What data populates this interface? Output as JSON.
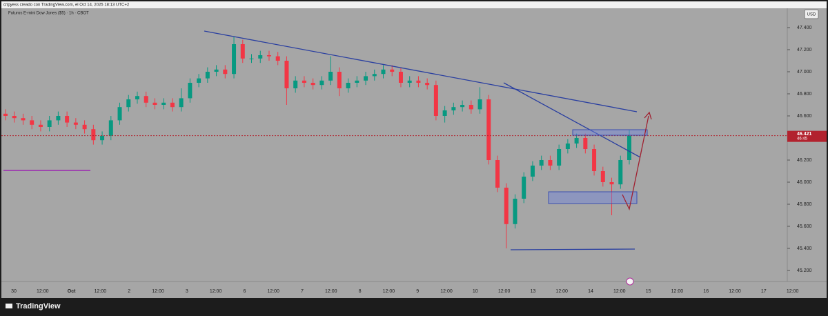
{
  "header": {
    "credit": "cripyess creado con TradingView.com, el Oct 14, 2025 18:13 UTC+2",
    "symbol": "Futuros E-mini Dow Jones ($5) · 1h · CBOT",
    "currency": "USD"
  },
  "footer": {
    "brand": "TradingView"
  },
  "chart_data": {
    "type": "candlestick",
    "categories": [
      "30",
      "12:00",
      "Oct",
      "12:00",
      "2",
      "12:00",
      "3",
      "12:00",
      "6",
      "12:00",
      "7",
      "12:00",
      "8",
      "12:00",
      "9",
      "12:00",
      "10",
      "12:00",
      "13",
      "12:00",
      "14",
      "12:00",
      "15",
      "12:00",
      "16",
      "12:00",
      "17",
      "12:00"
    ],
    "open": [
      46620,
      46600,
      46580,
      46560,
      46520,
      46500,
      46560,
      46600,
      46540,
      46520,
      46480,
      46380,
      46420,
      46560,
      46680,
      46750,
      46780,
      46720,
      46700,
      46720,
      46680,
      46760,
      46900,
      46940,
      47000,
      47020,
      46980,
      47250,
      47120,
      47120,
      47150,
      47140,
      47100,
      46850,
      46920,
      46900,
      46880,
      46920,
      47000,
      46850,
      46900,
      46920,
      46960,
      46980,
      47020,
      47000,
      46900,
      46920,
      46900,
      46880,
      46600,
      46650,
      46680,
      46700,
      46660,
      46750,
      46200,
      45950,
      45620,
      45850,
      46050,
      46150,
      46200,
      46150,
      46300,
      46350,
      46400,
      46300,
      46100,
      46000,
      45980,
      46200
    ],
    "high": [
      46660,
      46640,
      46620,
      46600,
      46560,
      46600,
      46640,
      46640,
      46580,
      46560,
      46520,
      46460,
      46600,
      46720,
      46790,
      46820,
      46820,
      46760,
      46760,
      46760,
      46850,
      46940,
      46980,
      47040,
      47060,
      47060,
      47320,
      47290,
      47160,
      47190,
      47190,
      47180,
      47140,
      46960,
      46960,
      46940,
      46960,
      47140,
      47040,
      46940,
      46960,
      47000,
      47020,
      47060,
      47060,
      47040,
      46960,
      46960,
      46940,
      46920,
      46690,
      46720,
      46740,
      46740,
      46860,
      46790,
      46240,
      45990,
      45890,
      46090,
      46190,
      46240,
      46240,
      46340,
      46390,
      46440,
      46440,
      46340,
      46140,
      46040,
      46240,
      46470
    ],
    "low": [
      46560,
      46540,
      46520,
      46480,
      46460,
      46460,
      46520,
      46500,
      46480,
      46440,
      46340,
      46340,
      46380,
      46520,
      46640,
      46710,
      46680,
      46660,
      46660,
      46640,
      46640,
      46720,
      46860,
      46900,
      46960,
      46940,
      46940,
      47080,
      47080,
      47080,
      47100,
      47060,
      46700,
      46810,
      46860,
      46840,
      46840,
      46880,
      46780,
      46810,
      46860,
      46880,
      46920,
      46940,
      46960,
      46860,
      46860,
      46860,
      46840,
      46560,
      46540,
      46610,
      46640,
      46620,
      46620,
      46160,
      45910,
      45400,
      45580,
      45810,
      46010,
      46110,
      46110,
      46110,
      46260,
      46310,
      46260,
      46060,
      45960,
      45700,
      45940,
      46160
    ],
    "close": [
      46600,
      46580,
      46560,
      46520,
      46500,
      46560,
      46600,
      46540,
      46520,
      46480,
      46380,
      46420,
      46560,
      46680,
      46750,
      46780,
      46720,
      46700,
      46720,
      46680,
      46760,
      46900,
      46940,
      47000,
      47020,
      46980,
      47250,
      47120,
      47120,
      47150,
      47140,
      47100,
      46850,
      46920,
      46900,
      46880,
      46920,
      47000,
      46850,
      46900,
      46920,
      46960,
      46980,
      47020,
      47000,
      46900,
      46920,
      46900,
      46880,
      46600,
      46650,
      46680,
      46700,
      46660,
      46750,
      46200,
      45950,
      45620,
      45850,
      46050,
      46150,
      46200,
      46150,
      46300,
      46350,
      46400,
      46300,
      46100,
      46000,
      45980,
      46200,
      46420
    ],
    "up_color": "#089981",
    "down_color": "#f23645",
    "ylim": [
      45050,
      47600
    ],
    "yticks": [
      {
        "value": 47400,
        "label": "47.400"
      },
      {
        "value": 47200,
        "label": "47.200"
      },
      {
        "value": 47000,
        "label": "47.000"
      },
      {
        "value": 46800,
        "label": "46.800"
      },
      {
        "value": 46600,
        "label": "46.600"
      },
      {
        "value": 46200,
        "label": "46.200"
      },
      {
        "value": 46000,
        "label": "46.000"
      },
      {
        "value": 45800,
        "label": "45.800"
      },
      {
        "value": 45600,
        "label": "45.600"
      },
      {
        "value": 45400,
        "label": "45.400"
      },
      {
        "value": 45200,
        "label": "45.200"
      }
    ],
    "last_price": {
      "value": 46421,
      "label": "46.421"
    },
    "countdown": "46:45",
    "last_price_color": "#b2222e"
  }
}
